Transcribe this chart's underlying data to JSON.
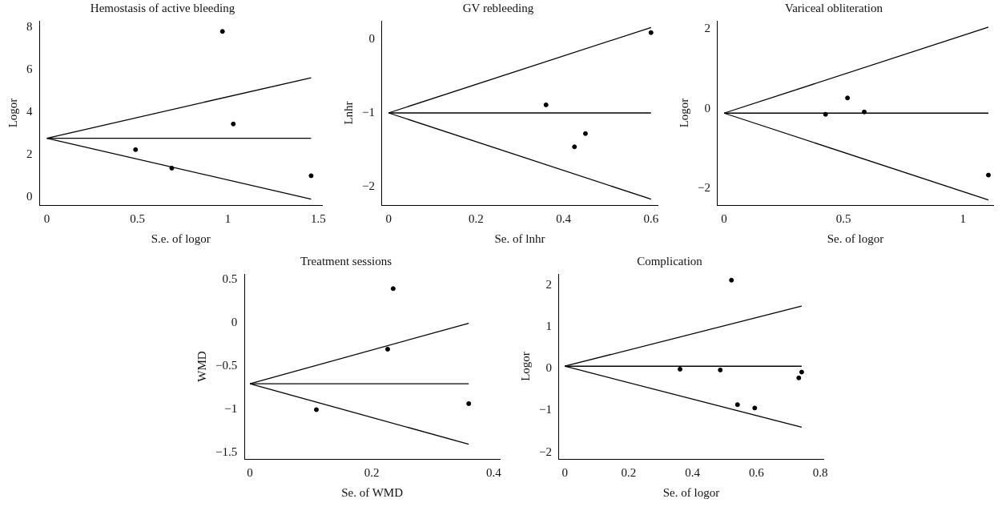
{
  "chart_data": [
    {
      "type": "scatter",
      "title": "Hemostasis of active bleeding",
      "xlabel": "S.e. of logor",
      "ylabel": "Logor",
      "xlim": [
        -0.04,
        1.52
      ],
      "ylim": [
        -0.38,
        8.3
      ],
      "xticks": [
        0,
        0.5,
        1,
        1.5
      ],
      "yticks": [
        0,
        2,
        4,
        6,
        8
      ],
      "grid": false,
      "legend": false,
      "series": [
        {
          "type": "scatter",
          "marker": "circle",
          "color": "#000000",
          "x": [
            0.49,
            0.69,
            0.97,
            1.03,
            1.46
          ],
          "values": [
            2.23,
            1.36,
            7.8,
            3.44,
            1.0
          ]
        },
        {
          "type": "line",
          "color": "#000000",
          "x": [
            0,
            1.46
          ],
          "values": [
            2.77,
            5.62
          ]
        },
        {
          "type": "line",
          "color": "#000000",
          "x": [
            0,
            1.46
          ],
          "values": [
            2.77,
            2.77
          ]
        },
        {
          "type": "line",
          "color": "#000000",
          "x": [
            0,
            1.46
          ],
          "values": [
            2.77,
            -0.1
          ]
        }
      ]
    },
    {
      "type": "scatter",
      "title": "GV rebleeding",
      "xlabel": "Se. of lnhr",
      "ylabel": "Lnhr",
      "xlim": [
        -0.015,
        0.615
      ],
      "ylim": [
        -2.25,
        0.25
      ],
      "xticks": [
        0,
        0.2,
        0.4,
        0.6
      ],
      "yticks": [
        -2,
        -1,
        0
      ],
      "grid": false,
      "legend": false,
      "series": [
        {
          "type": "scatter",
          "marker": "circle",
          "color": "#000000",
          "x": [
            0.36,
            0.425,
            0.45,
            0.6
          ],
          "values": [
            -0.89,
            -1.46,
            -1.28,
            0.09
          ]
        },
        {
          "type": "line",
          "color": "#000000",
          "x": [
            0,
            0.6
          ],
          "values": [
            -1.0,
            0.16
          ]
        },
        {
          "type": "line",
          "color": "#000000",
          "x": [
            0,
            0.6
          ],
          "values": [
            -1.0,
            -1.0
          ]
        },
        {
          "type": "line",
          "color": "#000000",
          "x": [
            0,
            0.6
          ],
          "values": [
            -1.0,
            -2.17
          ]
        }
      ]
    },
    {
      "type": "scatter",
      "title": "Variceal obliteration",
      "xlabel": "Se. of logor",
      "ylabel": "Logor",
      "xlim": [
        -0.027,
        1.127
      ],
      "ylim": [
        -2.41,
        2.2
      ],
      "xticks": [
        0,
        0.5,
        1
      ],
      "yticks": [
        -2,
        0,
        2
      ],
      "grid": false,
      "legend": false,
      "series": [
        {
          "type": "scatter",
          "marker": "circle",
          "color": "#000000",
          "x": [
            0.425,
            0.517,
            0.587,
            1.107
          ],
          "values": [
            -0.14,
            0.27,
            -0.08,
            -1.66
          ]
        },
        {
          "type": "line",
          "color": "#000000",
          "x": [
            0,
            1.107
          ],
          "values": [
            -0.11,
            2.04
          ]
        },
        {
          "type": "line",
          "color": "#000000",
          "x": [
            0,
            1.107
          ],
          "values": [
            -0.11,
            -0.11
          ]
        },
        {
          "type": "line",
          "color": "#000000",
          "x": [
            0,
            1.107
          ],
          "values": [
            -0.11,
            -2.28
          ]
        }
      ]
    },
    {
      "type": "scatter",
      "title": "Treatment sessions",
      "xlabel": "Se. of WMD",
      "ylabel": "WMD",
      "xlim": [
        -0.009,
        0.41
      ],
      "ylim": [
        -1.57,
        0.57
      ],
      "xticks": [
        0,
        0.2,
        0.4
      ],
      "yticks": [
        -1.5,
        -1,
        -0.5,
        0,
        0.5
      ],
      "grid": false,
      "legend": false,
      "series": [
        {
          "type": "scatter",
          "marker": "circle",
          "color": "#000000",
          "x": [
            0.109,
            0.226,
            0.235,
            0.359
          ],
          "values": [
            -1.0,
            -0.3,
            0.4,
            -0.93
          ]
        },
        {
          "type": "line",
          "color": "#000000",
          "x": [
            0,
            0.359
          ],
          "values": [
            -0.7,
            0.0
          ]
        },
        {
          "type": "line",
          "color": "#000000",
          "x": [
            0,
            0.359
          ],
          "values": [
            -0.7,
            -0.7
          ]
        },
        {
          "type": "line",
          "color": "#000000",
          "x": [
            0,
            0.359
          ],
          "values": [
            -0.7,
            -1.4
          ]
        }
      ]
    },
    {
      "type": "scatter",
      "title": "Complication",
      "xlabel": "Se. of logor",
      "ylabel": "Logor",
      "xlim": [
        -0.018,
        0.81
      ],
      "ylim": [
        -2.16,
        2.27
      ],
      "xticks": [
        0,
        0.2,
        0.4,
        0.6,
        0.8
      ],
      "yticks": [
        -2,
        -1,
        0,
        1,
        2
      ],
      "grid": false,
      "legend": false,
      "series": [
        {
          "type": "scatter",
          "marker": "circle",
          "color": "#000000",
          "x": [
            0.361,
            0.487,
            0.522,
            0.541,
            0.595,
            0.733,
            0.742
          ],
          "values": [
            -0.01,
            -0.03,
            2.12,
            -0.86,
            -0.94,
            -0.22,
            -0.08
          ]
        },
        {
          "type": "line",
          "color": "#000000",
          "x": [
            0,
            0.742
          ],
          "values": [
            0.06,
            1.5
          ]
        },
        {
          "type": "line",
          "color": "#000000",
          "x": [
            0,
            0.742
          ],
          "values": [
            0.06,
            0.06
          ]
        },
        {
          "type": "line",
          "color": "#000000",
          "x": [
            0,
            0.742
          ],
          "values": [
            0.06,
            -1.4
          ]
        }
      ]
    }
  ]
}
